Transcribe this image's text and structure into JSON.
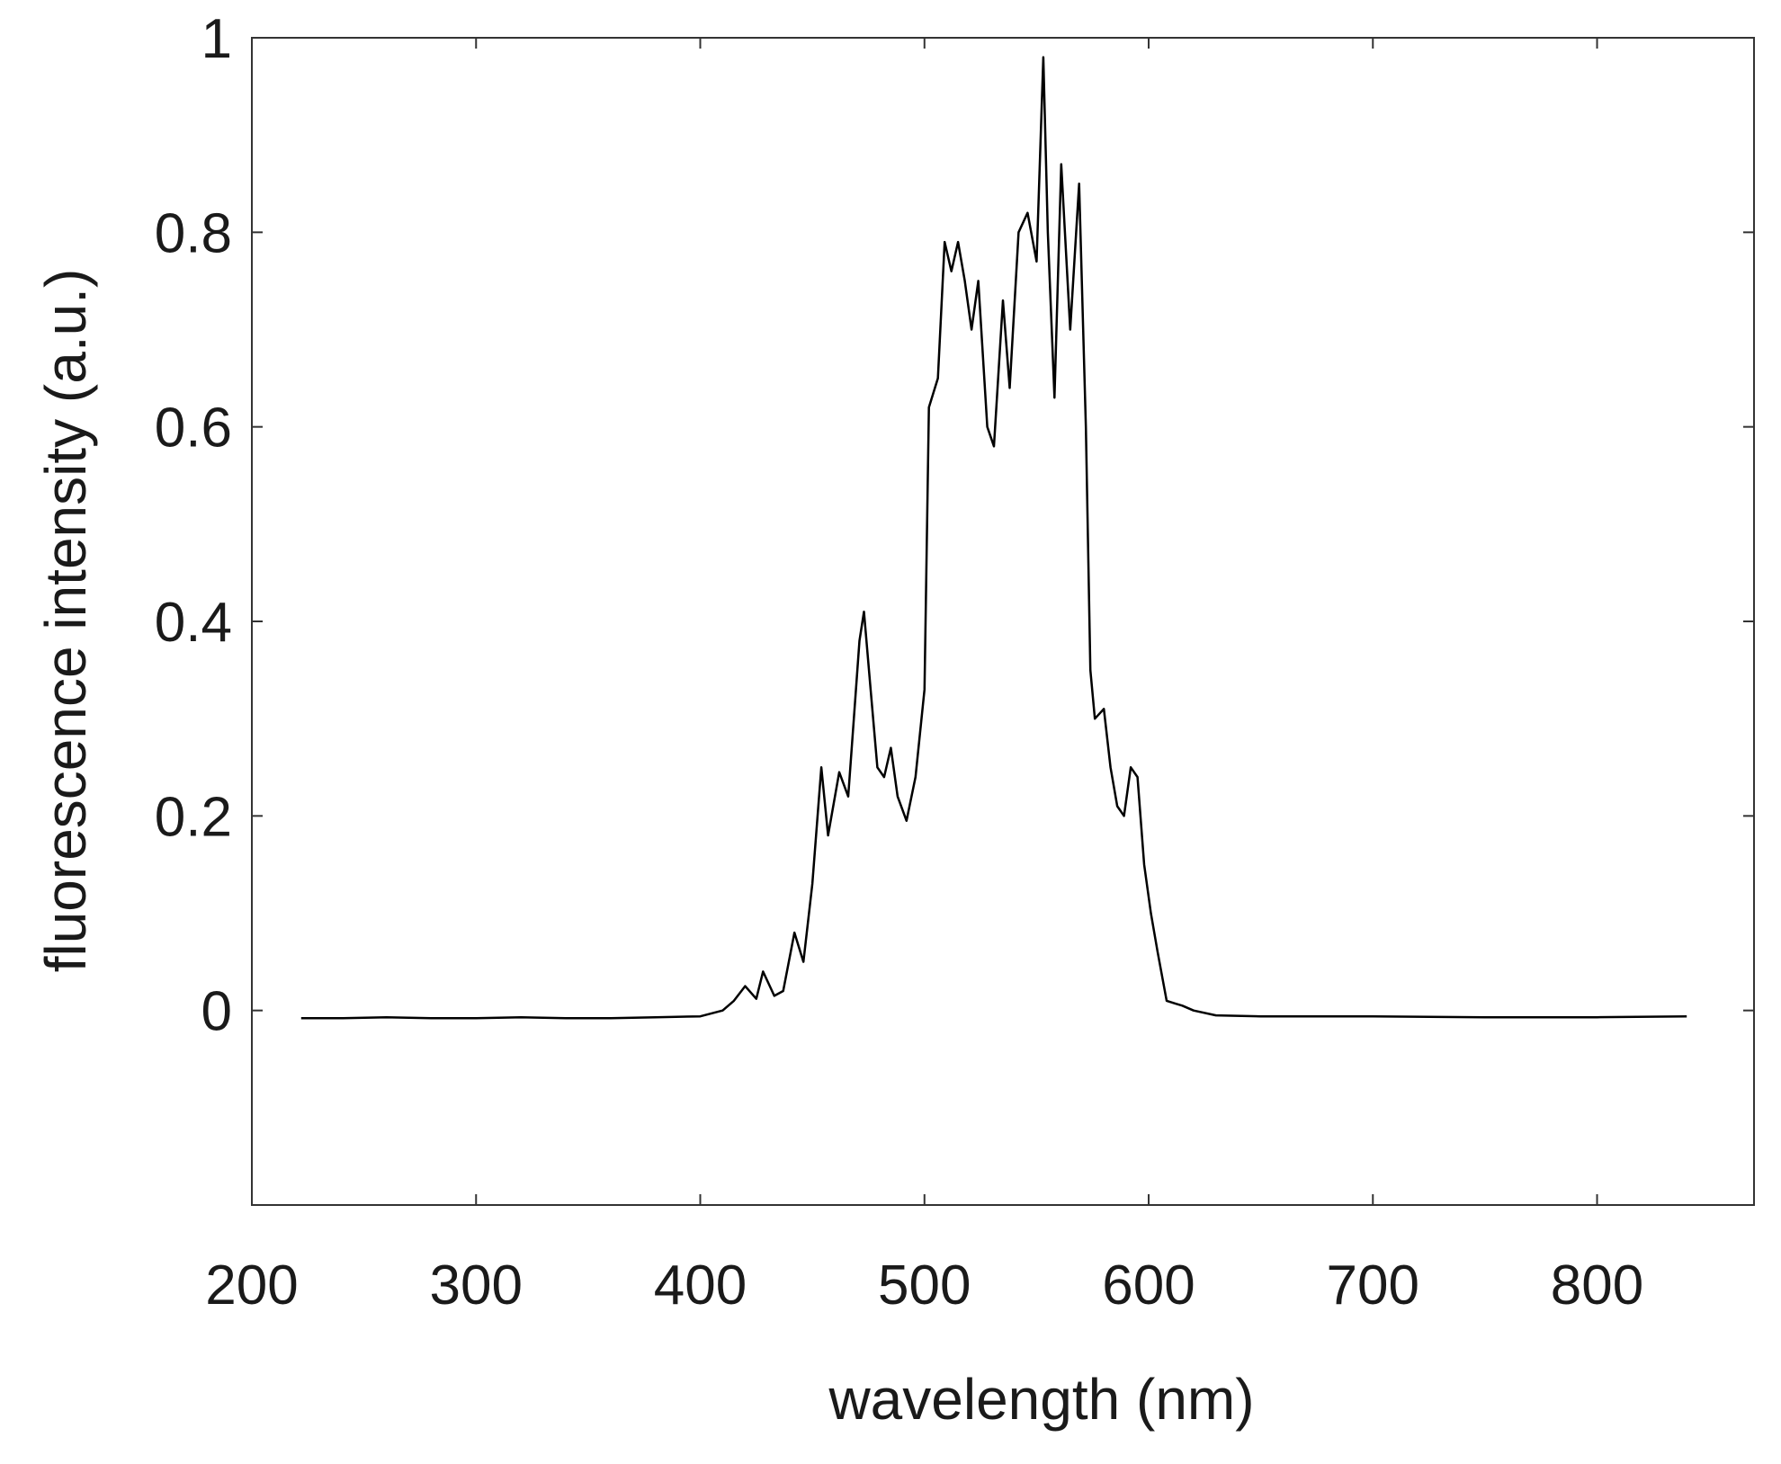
{
  "chart_data": {
    "type": "line",
    "title": "",
    "xlabel": "wavelength (nm)",
    "ylabel": "fluorescence intensity  (a.u.)",
    "xlim": [
      200,
      870
    ],
    "ylim": [
      -0.2,
      1.0
    ],
    "xticks": [
      200,
      300,
      400,
      500,
      600,
      700,
      800
    ],
    "xtick_labels": [
      "200",
      "300",
      "400",
      "500",
      "600",
      "700",
      "800"
    ],
    "yticks": [
      0,
      0.2,
      0.4,
      0.6,
      0.8,
      1.0
    ],
    "ytick_labels": [
      "0",
      "0.2",
      "0.4",
      "0.6",
      "0.8",
      "1"
    ],
    "grid": false,
    "legend": "none",
    "line_color": "#000000",
    "series": [
      {
        "x": [
          222,
          240,
          260,
          280,
          300,
          320,
          340,
          360,
          380,
          400,
          410,
          415,
          420,
          425,
          428,
          433,
          437,
          442,
          446,
          450,
          454,
          457,
          462,
          466,
          471,
          473,
          476,
          479,
          482,
          485,
          488,
          492,
          496,
          500,
          502,
          506,
          509,
          512,
          515,
          518,
          521,
          524,
          528,
          531,
          535,
          538,
          542,
          546,
          550,
          553,
          555,
          558,
          561,
          565,
          569,
          572,
          574,
          576,
          580,
          583,
          586,
          589,
          592,
          595,
          598,
          601,
          604,
          608,
          612,
          615,
          620,
          630,
          650,
          700,
          750,
          800,
          840
        ],
        "y": [
          -0.008,
          -0.008,
          -0.007,
          -0.008,
          -0.008,
          -0.007,
          -0.008,
          -0.008,
          -0.007,
          -0.006,
          0.0,
          0.01,
          0.025,
          0.012,
          0.04,
          0.015,
          0.02,
          0.08,
          0.05,
          0.13,
          0.25,
          0.18,
          0.245,
          0.22,
          0.38,
          0.41,
          0.33,
          0.25,
          0.24,
          0.27,
          0.22,
          0.195,
          0.24,
          0.33,
          0.62,
          0.65,
          0.79,
          0.76,
          0.79,
          0.75,
          0.7,
          0.75,
          0.6,
          0.58,
          0.73,
          0.64,
          0.8,
          0.82,
          0.77,
          0.98,
          0.8,
          0.63,
          0.87,
          0.7,
          0.85,
          0.6,
          0.35,
          0.3,
          0.31,
          0.25,
          0.21,
          0.2,
          0.25,
          0.24,
          0.15,
          0.1,
          0.06,
          0.01,
          0.007,
          0.005,
          0.0,
          -0.005,
          -0.006,
          -0.006,
          -0.007,
          -0.007,
          -0.006
        ]
      }
    ]
  }
}
